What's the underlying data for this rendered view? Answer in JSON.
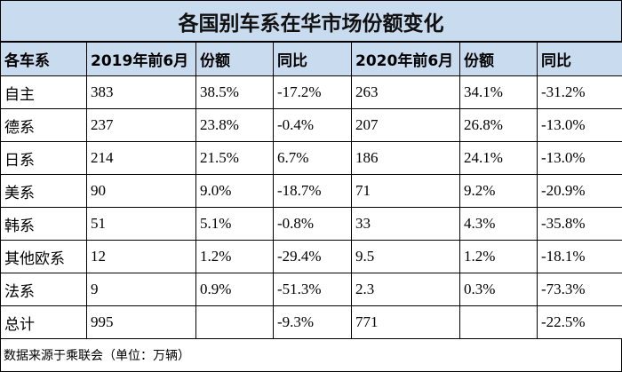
{
  "chart_data": {
    "type": "table",
    "title": "各国别车系在华市场份额变化",
    "columns": [
      "各车系",
      "2019年前6月",
      "份额",
      "同比",
      "2020年前6月",
      "份额",
      "同比"
    ],
    "rows": [
      [
        "自主",
        "383",
        "38.5%",
        "-17.2%",
        "263",
        "34.1%",
        "-31.2%"
      ],
      [
        "德系",
        "237",
        "23.8%",
        "-0.4%",
        "207",
        "26.8%",
        "-13.0%"
      ],
      [
        "日系",
        "214",
        "21.5%",
        "6.7%",
        "186",
        "24.1%",
        "-13.0%"
      ],
      [
        "美系",
        "90",
        "9.0%",
        "-18.7%",
        "71",
        "9.2%",
        "-20.9%"
      ],
      [
        "韩系",
        "51",
        "5.1%",
        "-0.8%",
        "33",
        "4.3%",
        "-35.8%"
      ],
      [
        "其他欧系",
        "12",
        "1.2%",
        "-29.4%",
        "9.5",
        "1.2%",
        "-18.1%"
      ],
      [
        "法系",
        "9",
        "0.9%",
        "-51.3%",
        "2.3",
        "0.3%",
        "-73.3%"
      ],
      [
        "总计",
        "995",
        "",
        "-9.3%",
        "771",
        "",
        "-22.5%"
      ]
    ],
    "source": "数据来源于乘联会（单位：万辆）"
  },
  "colors": {
    "header_bg": "#c9dbee",
    "border": "#000000"
  }
}
